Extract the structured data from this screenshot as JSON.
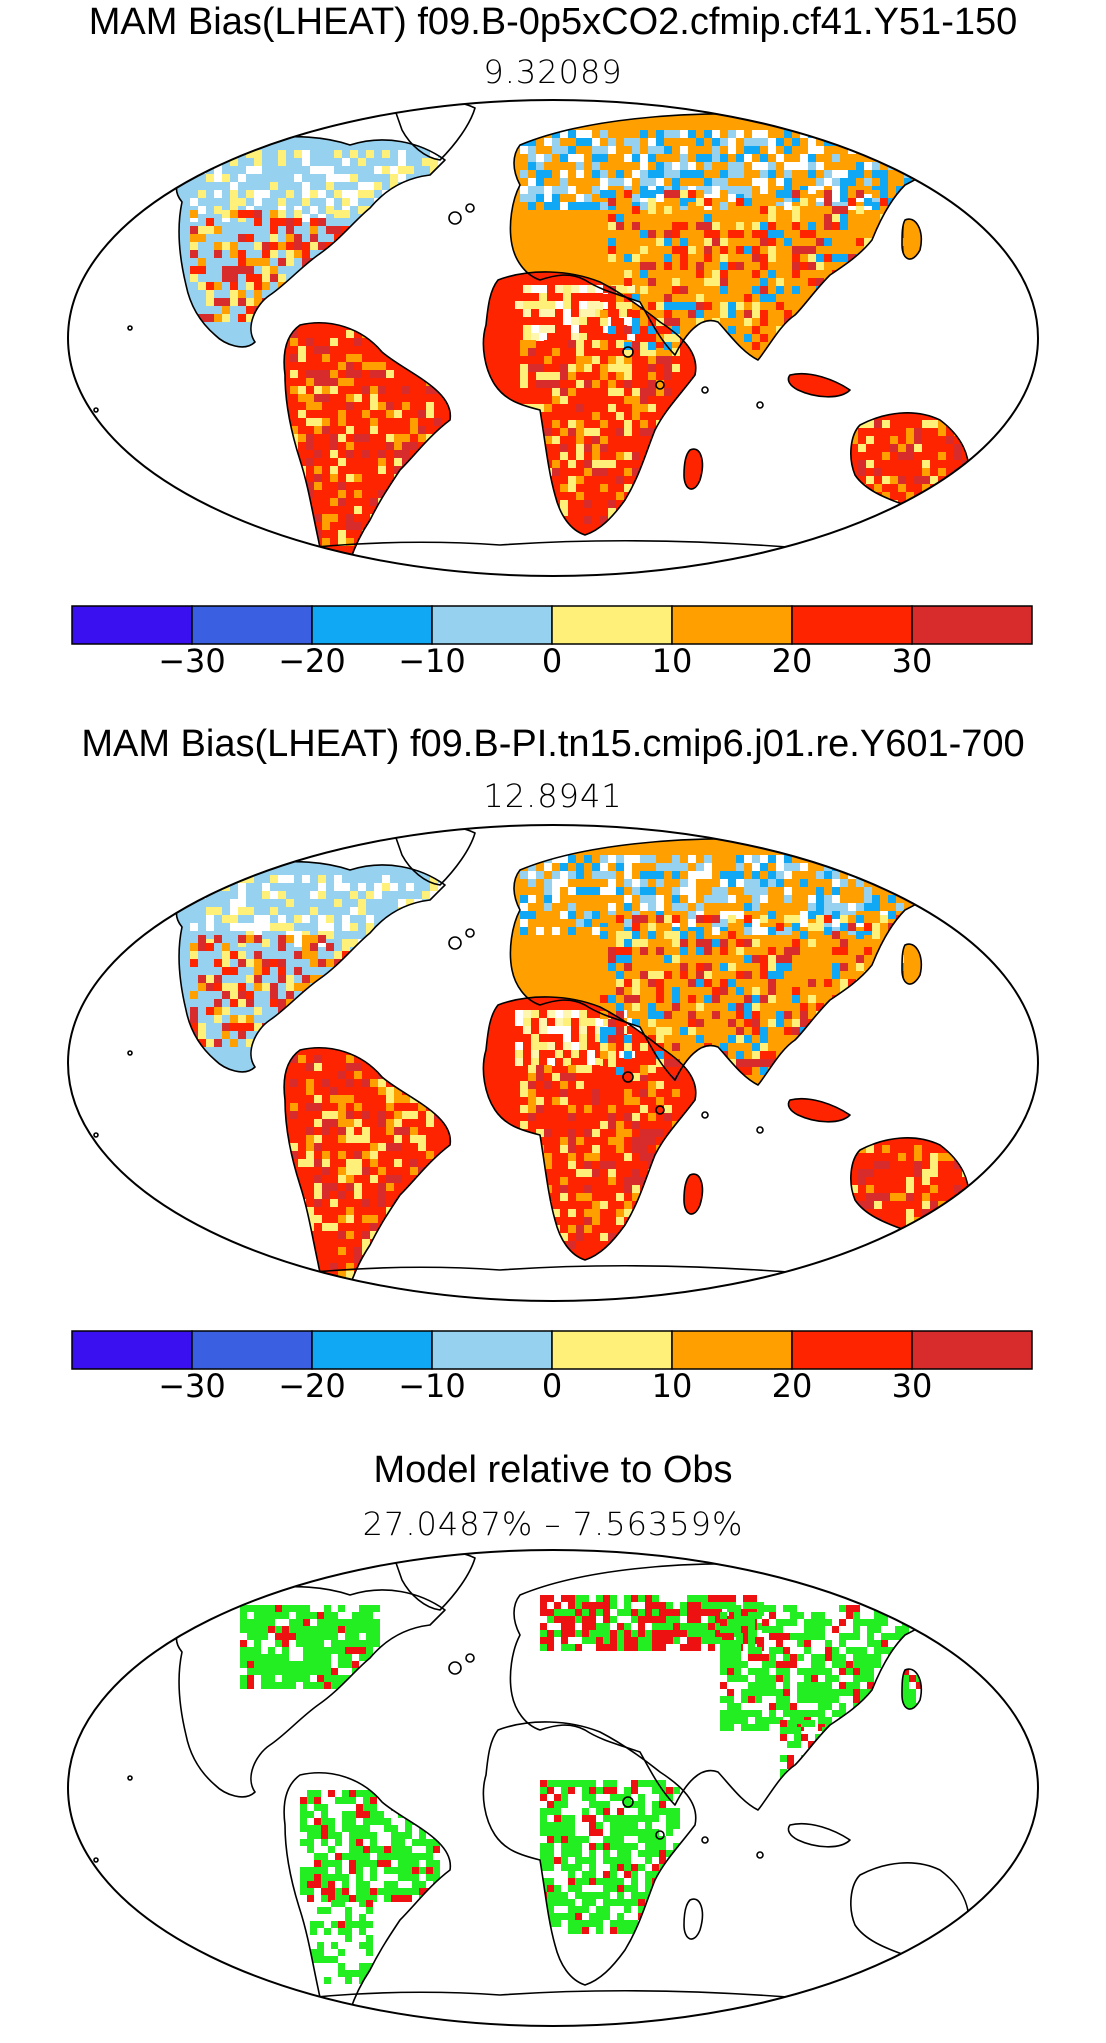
{
  "panels": [
    {
      "title": "MAM Bias(LHEAT) f09.B-0p5xCO2.cfmip.cf41.Y51-150",
      "subtitle": "9.32089",
      "style": "bias"
    },
    {
      "title": "MAM Bias(LHEAT) f09.B-PI.tn15.cmip6.j01.re.Y601-700",
      "subtitle": "12.8941",
      "style": "bias"
    },
    {
      "title": "Model relative to Obs",
      "subtitle": "27.0487% – 7.56359%",
      "style": "relative",
      "colors": {
        "better": "#22ee22",
        "worse": "#ee1111"
      }
    }
  ],
  "colorbar": {
    "colors": [
      "#3a10f0",
      "#3a5fe0",
      "#10a8f5",
      "#96d2f0",
      "#fff07a",
      "#ff9f00",
      "#ff2400",
      "#d82b2b"
    ],
    "tick_labels": [
      "−30",
      "−20",
      "−10",
      "0",
      "10",
      "20",
      "30"
    ]
  }
}
